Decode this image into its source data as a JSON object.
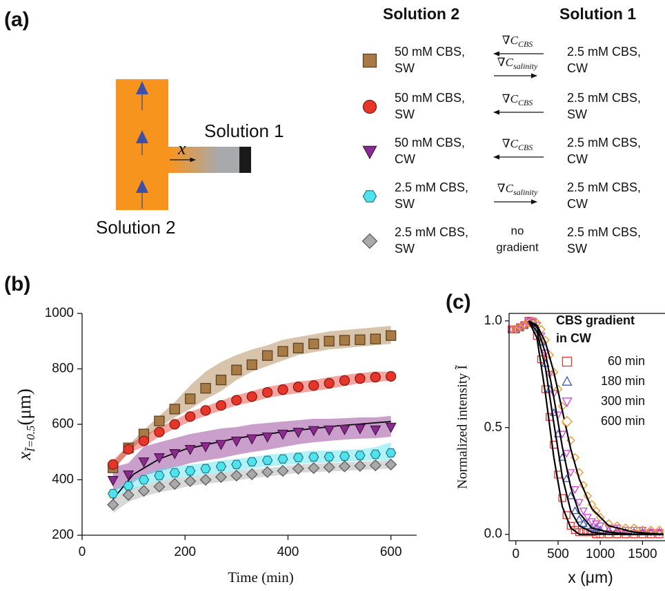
{
  "panel_labels": [
    "(a)",
    "(b)",
    "(c)"
  ],
  "diagram": {
    "outlet_label": "Solution 1",
    "inlet_label": "Solution 2",
    "axis_symbol": "x"
  },
  "legend": {
    "headers": [
      "Solution 2",
      "Solution 1"
    ],
    "rows": [
      {
        "solution2": [
          "50 mM CBS,",
          "SW"
        ],
        "gradients": [
          {
            "symbol": "∇C",
            "subscript": "CBS",
            "direction": "left"
          },
          {
            "symbol": "∇C",
            "subscript": "salinity",
            "direction": "right"
          }
        ],
        "solution1": [
          "2.5 mM CBS,",
          "CW"
        ]
      },
      {
        "solution2": [
          "50 mM CBS,",
          "SW"
        ],
        "gradients": [
          {
            "symbol": "∇C",
            "subscript": "CBS",
            "direction": "left"
          }
        ],
        "solution1": [
          "2.5 mM CBS,",
          "SW"
        ]
      },
      {
        "solution2": [
          "50 mM CBS,",
          "CW"
        ],
        "gradients": [
          {
            "symbol": "∇C",
            "subscript": "CBS",
            "direction": "left"
          }
        ],
        "solution1": [
          "2.5 mM CBS,",
          "CW"
        ]
      },
      {
        "solution2": [
          "2.5 mM CBS,",
          "SW"
        ],
        "gradients": [
          {
            "symbol": "∇C",
            "subscript": "salinity",
            "direction": "right"
          }
        ],
        "solution1": [
          "2.5 mM CBS,",
          "CW"
        ]
      },
      {
        "solution2": [
          "2.5 mM CBS,",
          "SW"
        ],
        "gradients": [],
        "note": [
          "no",
          "gradient"
        ],
        "solution1": [
          "2.5 mM CBS,",
          "SW"
        ]
      }
    ]
  },
  "chart_data": [
    {
      "type": "scatter",
      "xlabel": "Time (min)",
      "ylabel": {
        "symbol": "x",
        "subscript": "Ĩ=0.5",
        "unit": "(μm)"
      },
      "xlim": [
        0,
        650
      ],
      "ylim": [
        200,
        1000
      ],
      "xticks": [
        0,
        200,
        400,
        600
      ],
      "yticks": [
        200,
        400,
        600,
        800,
        1000
      ],
      "x": [
        60,
        90,
        120,
        150,
        180,
        210,
        240,
        270,
        300,
        330,
        360,
        390,
        420,
        450,
        480,
        510,
        540,
        570,
        600
      ],
      "series": [
        {
          "marker": "square",
          "color": "#a87a44",
          "values": [
            443,
            515,
            565,
            612,
            655,
            692,
            730,
            760,
            796,
            815,
            848,
            863,
            875,
            890,
            900,
            903,
            905,
            908,
            920
          ],
          "band": {
            "upper": [
              460,
              525,
              580,
              630,
              680,
              740,
              790,
              825,
              850,
              870,
              885,
              905,
              915,
              925,
              935,
              940,
              945,
              950,
              955
            ],
            "lower": [
              430,
              500,
              550,
              590,
              625,
              655,
              690,
              720,
              760,
              790,
              810,
              830,
              850,
              860,
              870,
              875,
              880,
              885,
              890
            ]
          }
        },
        {
          "marker": "circle",
          "color": "#e8352a",
          "values": [
            455,
            510,
            540,
            572,
            600,
            628,
            650,
            668,
            687,
            700,
            715,
            725,
            735,
            740,
            748,
            758,
            765,
            770,
            773
          ],
          "band": {
            "upper": [
              470,
              525,
              560,
              590,
              615,
              645,
              665,
              685,
              705,
              720,
              735,
              745,
              755,
              760,
              770,
              778,
              785,
              790,
              790
            ],
            "lower": [
              440,
              495,
              520,
              555,
              585,
              610,
              630,
              650,
              668,
              680,
              695,
              705,
              712,
              720,
              728,
              738,
              748,
              752,
              758
            ]
          }
        },
        {
          "marker": "triangle-down",
          "color": "#8b2a8f",
          "values": [
            398,
            418,
            465,
            480,
            495,
            510,
            520,
            528,
            540,
            548,
            555,
            565,
            572,
            578,
            580,
            582,
            585,
            580,
            590
          ],
          "band": {
            "upper": [
              445,
              460,
              520,
              535,
              550,
              565,
              575,
              585,
              590,
              600,
              605,
              610,
              615,
              620,
              620,
              622,
              625,
              625,
              630
            ],
            "lower": [
              360,
              380,
              415,
              430,
              445,
              460,
              470,
              478,
              490,
              500,
              508,
              518,
              528,
              535,
              540,
              545,
              548,
              550,
              555
            ]
          }
        },
        {
          "marker": "hexagon",
          "color": "#4fe3f0",
          "values": [
            350,
            378,
            400,
            415,
            425,
            432,
            440,
            448,
            455,
            465,
            470,
            475,
            480,
            482,
            483,
            485,
            488,
            492,
            497
          ],
          "band": {
            "upper": [
              365,
              395,
              420,
              440,
              450,
              455,
              460,
              470,
              475,
              482,
              490,
              495,
              500,
              505,
              505,
              508,
              510,
              518,
              535
            ],
            "lower": [
              335,
              360,
              380,
              395,
              405,
              410,
              418,
              425,
              432,
              440,
              448,
              452,
              458,
              460,
              462,
              465,
              468,
              470,
              470
            ]
          }
        },
        {
          "marker": "diamond",
          "color": "#a9a9a9",
          "values": [
            310,
            345,
            360,
            375,
            385,
            395,
            400,
            410,
            415,
            420,
            428,
            432,
            440,
            442,
            445,
            448,
            450,
            452,
            455
          ],
          "band": {
            "upper": [
              330,
              365,
              380,
              395,
              405,
              410,
              418,
              425,
              432,
              438,
              442,
              448,
              455,
              458,
              460,
              462,
              465,
              468,
              470
            ],
            "lower": [
              280,
              320,
              340,
              355,
              365,
              378,
              385,
              392,
              398,
              405,
              412,
              418,
              425,
              428,
              430,
              432,
              435,
              438,
              440
            ]
          }
        }
      ],
      "fit": {
        "color": "#000000",
        "x": [
          60,
          100,
          150,
          200,
          300,
          400,
          500,
          600
        ],
        "values": [
          330,
          420,
          475,
          510,
          550,
          575,
          595,
          610
        ]
      }
    },
    {
      "type": "scatter",
      "xlabel": "x (μm)",
      "ylabel": "Normalized intensity Ĩ",
      "legend_title": [
        "CBS gradient",
        "in CW"
      ],
      "marker_fill": "none",
      "xlim": [
        -80,
        1750
      ],
      "ylim": [
        -0.03,
        1.035
      ],
      "xticks": [
        0,
        500,
        1000,
        1500
      ],
      "yticks": [
        {
          "value": 0,
          "label": "0.0"
        },
        {
          "value": 0.5,
          "label": "0.5"
        },
        {
          "value": 1,
          "label": "1.0"
        }
      ],
      "x": [
        -50,
        0,
        50,
        100,
        150,
        200,
        250,
        300,
        350,
        400,
        450,
        500,
        550,
        600,
        650,
        700,
        750,
        800,
        850,
        900,
        950,
        1000,
        1100,
        1200,
        1300,
        1400,
        1500,
        1600,
        1700
      ],
      "series": [
        {
          "name": "60 min",
          "marker": "square",
          "color": "#e8352a",
          "values": [
            0.96,
            0.96,
            0.97,
            0.98,
            1.0,
            0.99,
            0.93,
            0.82,
            0.68,
            0.55,
            0.42,
            0.28,
            0.17,
            0.09,
            0.04,
            0.02,
            0.01,
            0.01,
            0.01,
            0.01,
            0.0,
            0.0,
            0.0,
            0.0,
            0.0,
            0.0,
            0.0,
            0.0,
            0.0
          ]
        },
        {
          "name": "180 min",
          "marker": "triangle-up",
          "color": "#3b57c4",
          "values": [
            0.96,
            0.96,
            0.97,
            0.98,
            1.0,
            1.0,
            0.96,
            0.9,
            0.8,
            0.68,
            0.57,
            0.47,
            0.36,
            0.26,
            0.18,
            0.11,
            0.07,
            0.05,
            0.04,
            0.03,
            0.03,
            0.02,
            0.02,
            0.02,
            0.01,
            0.01,
            0.01,
            0.01,
            0.01
          ]
        },
        {
          "name": "300 min",
          "marker": "triangle-down",
          "color": "#d63fd6",
          "values": [
            0.96,
            0.96,
            0.97,
            0.98,
            1.0,
            1.0,
            0.98,
            0.93,
            0.85,
            0.75,
            0.66,
            0.56,
            0.47,
            0.38,
            0.29,
            0.21,
            0.15,
            0.11,
            0.08,
            0.06,
            0.05,
            0.04,
            0.03,
            0.03,
            0.02,
            0.02,
            0.02,
            0.01,
            0.01
          ]
        },
        {
          "name": "600 min",
          "marker": "diamond",
          "color": "#f39324",
          "values": [
            0.96,
            0.96,
            0.97,
            0.98,
            0.99,
            1.0,
            0.99,
            0.96,
            0.91,
            0.84,
            0.76,
            0.68,
            0.6,
            0.52,
            0.44,
            0.36,
            0.29,
            0.23,
            0.18,
            0.14,
            0.11,
            0.08,
            0.05,
            0.04,
            0.03,
            0.03,
            0.02,
            0.02,
            0.02
          ]
        }
      ],
      "fits": {
        "color": "#000000",
        "x": [
          150,
          250,
          350,
          450,
          550,
          650,
          750,
          900,
          1100,
          1400,
          1750
        ],
        "values": [
          [
            1.0,
            0.92,
            0.66,
            0.36,
            0.13,
            0.03,
            0.0,
            0.0,
            0.0,
            0.0,
            0.0
          ],
          [
            1.0,
            0.95,
            0.78,
            0.52,
            0.27,
            0.11,
            0.04,
            0.01,
            0.0,
            0.0,
            0.0
          ],
          [
            1.0,
            0.97,
            0.85,
            0.64,
            0.41,
            0.22,
            0.1,
            0.03,
            0.01,
            0.0,
            0.0
          ],
          [
            1.0,
            0.98,
            0.9,
            0.76,
            0.58,
            0.4,
            0.26,
            0.12,
            0.04,
            0.01,
            0.0
          ]
        ]
      }
    }
  ]
}
